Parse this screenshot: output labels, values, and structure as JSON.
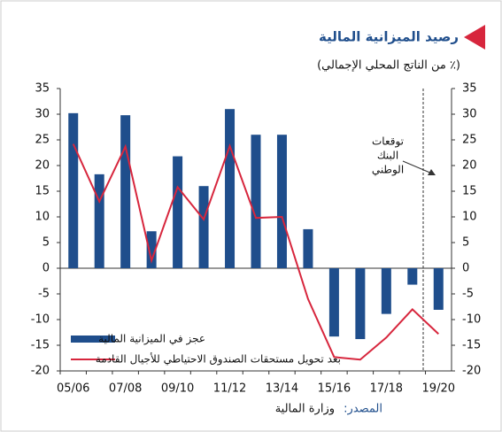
{
  "chart_data": {
    "type": "bar_line",
    "title": "رصيد الميزانية المالية",
    "subtitle": "(٪ من الناتج المحلي الإجمالي)",
    "categories": [
      "05/06",
      null,
      "07/08",
      null,
      "09/10",
      null,
      "11/12",
      null,
      "13/14",
      null,
      "15/16",
      null,
      "17/18",
      null,
      "19/20"
    ],
    "series": [
      {
        "name": "عجز في الميزانية المالية",
        "type": "bar",
        "color": "#1f4e8c",
        "values": [
          30.2,
          18.3,
          29.8,
          7.2,
          21.8,
          16,
          31,
          26,
          26,
          7.6,
          -13.3,
          -13.8,
          -8.9,
          -3.2,
          -8.1
        ]
      },
      {
        "name": "بعد تحويل مستحقات الصندوق الاحتياطي للأجيال القادمة",
        "type": "line",
        "color": "#d7263d",
        "values": [
          24.2,
          13,
          23.7,
          1.5,
          15.8,
          9.5,
          23.8,
          9.8,
          10,
          -6,
          -17.3,
          -17.8,
          -13.5,
          -8,
          -12.8
        ]
      }
    ],
    "ylim": [
      -20,
      35
    ],
    "yticks": [
      -20,
      -15,
      -10,
      -5,
      0,
      5,
      10,
      15,
      20,
      25,
      30,
      35
    ],
    "y2lim": [
      -20,
      35
    ],
    "y2ticks": [
      -20,
      -15,
      -10,
      -5,
      0,
      5,
      10,
      15,
      20,
      25,
      30,
      35
    ],
    "annotation": [
      "توقعات",
      "البنك",
      "الوطني"
    ],
    "source_label": "المصدر:",
    "source_text": "وزارة المالية",
    "legend": "lower left"
  }
}
